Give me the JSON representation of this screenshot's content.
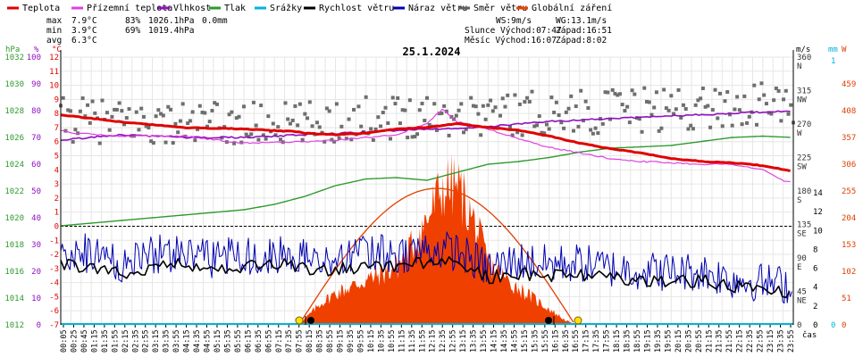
{
  "chart_data": {
    "type": "line",
    "title": "25.1.2024",
    "legend": [
      {
        "label": "Teplota",
        "color": "#e00000"
      },
      {
        "label": "Přízemní teplota",
        "color": "#e040e0"
      },
      {
        "label": "Vlhkost",
        "color": "#9010c0"
      },
      {
        "label": "Tlak",
        "color": "#2e9a2e"
      },
      {
        "label": "Srážky",
        "color": "#00b4d8"
      },
      {
        "label": "Rychlost větru",
        "color": "#000000"
      },
      {
        "label": "Náraz větru",
        "color": "#0000b0"
      },
      {
        "label": "Směr větru",
        "color": "#606060"
      },
      {
        "label": "Globální záření",
        "color": "#f04000"
      }
    ],
    "stats": {
      "max_label": "max",
      "min_label": "min",
      "avg_label": "avg",
      "max_temp": "7.9°C",
      "max_hum": "83%",
      "max_press": "1026.1hPa",
      "max_rain": "0.0mm",
      "min_temp": "3.9°C",
      "min_hum": "69%",
      "min_press": "1019.4hPa",
      "avg_temp": "6.3°C",
      "ws": "WS:9m/s",
      "wg": "WG:13.1m/s",
      "sun": "Slunce Východ:07:47",
      "sun_set": "Západ:16:51",
      "moon": "Měsíc  Východ:16:07",
      "moon_set": "Západ:8:02"
    },
    "axis_units": {
      "hpa": "hPa",
      "pct": "%",
      "deg": "°C",
      "dir": "°",
      "ms": "m/s",
      "mm": "mm",
      "w": "W",
      "time": "čas"
    },
    "y_pressure_ticks": [
      "1032",
      "1030",
      "1028",
      "1026",
      "1024",
      "1022",
      "1020",
      "1018",
      "1016",
      "1014",
      "1012"
    ],
    "y_humidity_ticks": [
      "100",
      "90",
      "80",
      "70",
      "60",
      "50",
      "40",
      "30",
      "20",
      "10",
      "0"
    ],
    "y_temp_ticks": [
      "12",
      "11",
      "10",
      "9",
      "8",
      "7",
      "6",
      "5",
      "4",
      "3",
      "2",
      "1",
      "0",
      "-1",
      "-2",
      "-3",
      "-4",
      "-5",
      "-6",
      "-7"
    ],
    "y_dir_ticks": [
      "360 N",
      "315 NW",
      "270 W",
      "225 SW",
      "180 S",
      "135 SE",
      "90 E",
      "45 NE",
      "0"
    ],
    "y_wind_ticks": [
      "14",
      "12",
      "10",
      "8",
      "6",
      "4",
      "2",
      "0"
    ],
    "y_rain_ticks": [
      "1",
      "0"
    ],
    "y_rad_ticks": [
      "459",
      "408",
      "357",
      "306",
      "255",
      "204",
      "153",
      "102",
      "51",
      "0"
    ],
    "x_labels": [
      "00:05",
      "00:25",
      "00:45",
      "01:15",
      "01:35",
      "01:55",
      "02:15",
      "02:35",
      "02:55",
      "03:15",
      "03:35",
      "03:55",
      "04:15",
      "04:35",
      "04:55",
      "05:15",
      "05:35",
      "05:55",
      "06:15",
      "06:35",
      "06:55",
      "07:15",
      "07:35",
      "07:55",
      "08:15",
      "08:35",
      "08:55",
      "09:15",
      "09:35",
      "09:55",
      "10:15",
      "10:35",
      "10:55",
      "11:15",
      "11:35",
      "11:55",
      "12:15",
      "12:35",
      "12:55",
      "13:15",
      "13:35",
      "13:55",
      "14:15",
      "14:35",
      "14:55",
      "15:15",
      "15:35",
      "15:55",
      "16:15",
      "16:35",
      "16:55",
      "17:15",
      "17:35",
      "17:55",
      "18:15",
      "18:35",
      "18:55",
      "19:15",
      "19:35",
      "19:55",
      "20:15",
      "20:35",
      "20:55",
      "21:15",
      "21:35",
      "21:55",
      "22:15",
      "22:35",
      "22:55",
      "23:15",
      "23:35",
      "23:55"
    ],
    "series": [
      {
        "name": "Teplota",
        "unit": "°C",
        "hours": [
          0,
          2,
          4,
          6,
          7.8,
          8,
          9,
          10,
          11,
          12,
          13,
          14,
          15,
          16,
          17,
          18,
          19,
          20,
          21,
          22,
          23,
          24
        ],
        "values": [
          7.9,
          7.4,
          7.0,
          6.9,
          6.7,
          6.6,
          6.5,
          6.6,
          6.9,
          7.0,
          7.3,
          7.0,
          6.8,
          6.4,
          5.9,
          5.5,
          5.2,
          4.8,
          4.6,
          4.5,
          4.3,
          3.9
        ]
      },
      {
        "name": "Přízemní teplota",
        "unit": "°C",
        "hours": [
          0,
          0.5,
          2,
          4,
          6,
          8,
          9,
          10,
          11,
          12,
          12.5,
          13,
          14,
          15,
          16,
          17,
          18,
          19,
          20,
          21,
          22,
          23,
          23.7,
          24
        ],
        "values": [
          6.8,
          6.6,
          6.4,
          6.4,
          5.9,
          6.0,
          6.1,
          6.3,
          6.5,
          7.3,
          8.3,
          7.4,
          6.9,
          6.2,
          5.6,
          5.2,
          4.8,
          4.6,
          4.5,
          4.4,
          4.4,
          4.0,
          3.2,
          3.1
        ]
      },
      {
        "name": "Vlhkost",
        "unit": "%",
        "hours": [
          0,
          2,
          4,
          6,
          8,
          10,
          12,
          14,
          16,
          18,
          20,
          22,
          24
        ],
        "values": [
          69,
          71,
          70,
          70,
          71,
          72,
          73,
          74,
          76,
          77,
          78,
          79,
          80
        ]
      },
      {
        "name": "Tlak",
        "unit": "hPa",
        "hours": [
          0,
          2,
          4,
          6,
          7,
          8,
          9,
          10,
          11,
          12,
          13,
          14,
          15,
          16,
          17,
          18,
          19,
          20,
          21,
          22,
          23,
          24
        ],
        "values": [
          1019.4,
          1019.8,
          1020.2,
          1020.6,
          1021.0,
          1021.6,
          1022.4,
          1022.9,
          1023.0,
          1022.8,
          1023.4,
          1024.0,
          1024.2,
          1024.5,
          1024.9,
          1025.2,
          1025.3,
          1025.4,
          1025.7,
          1026.0,
          1026.1,
          1026.0
        ]
      },
      {
        "name": "Srážky",
        "unit": "mm",
        "hours": [
          0,
          24
        ],
        "values": [
          0,
          0
        ]
      },
      {
        "name": "Rychlost větru",
        "unit": "m/s",
        "hours": [
          0,
          1,
          2,
          3,
          4,
          5,
          6,
          7,
          8,
          9,
          10,
          11,
          12,
          13,
          14,
          15,
          16,
          17,
          18,
          19,
          20,
          21,
          22,
          23,
          24
        ],
        "values": [
          6.5,
          6.0,
          5.5,
          6.0,
          6.5,
          5.8,
          6.2,
          6.5,
          6.0,
          5.8,
          6.3,
          6.2,
          6.6,
          6.5,
          5.0,
          5.5,
          5.2,
          5.4,
          5.0,
          4.8,
          4.6,
          4.7,
          4.0,
          3.8,
          3.5
        ]
      },
      {
        "name": "Náraz větru",
        "unit": "m/s",
        "hours": [
          0,
          1,
          2,
          3,
          4,
          5,
          6,
          7,
          8,
          9,
          10,
          11,
          12,
          13,
          14,
          15,
          16,
          17,
          18,
          19,
          20,
          21,
          22,
          23,
          24
        ],
        "values": [
          8,
          7.5,
          6.5,
          7.5,
          7.8,
          7.0,
          7.4,
          7.6,
          7.2,
          7.0,
          7.6,
          7.5,
          8.0,
          7.8,
          6.0,
          6.8,
          6.4,
          6.6,
          6.0,
          5.8,
          5.6,
          5.7,
          4.8,
          4.5,
          4.2
        ]
      },
      {
        "name": "Směr větru",
        "unit": "°",
        "hours": [
          0,
          4,
          8,
          12,
          16,
          20,
          24
        ],
        "values": [
          276,
          270,
          270,
          284,
          285,
          290,
          298
        ]
      },
      {
        "name": "Globální záření",
        "unit": "W",
        "hours": [
          7.8,
          8.5,
          9,
          10,
          11,
          11.5,
          12,
          12.5,
          13,
          13.5,
          14,
          14.5,
          15,
          15.5,
          16,
          16.5,
          16.85
        ],
        "values": [
          0,
          40,
          60,
          85,
          110,
          150,
          200,
          260,
          265,
          200,
          120,
          90,
          70,
          50,
          30,
          10,
          0
        ]
      }
    ]
  }
}
